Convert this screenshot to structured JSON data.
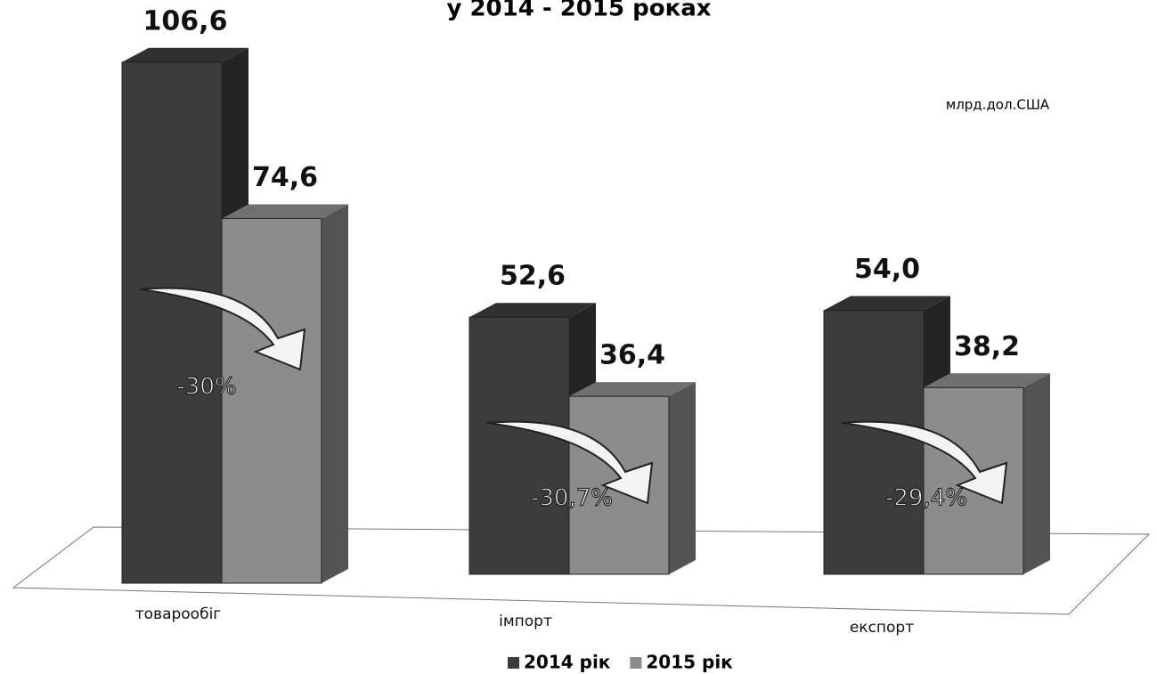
{
  "chart_data": {
    "type": "bar",
    "title": "у 2014 - 2015 роках",
    "unit": "млрд.дол.США",
    "categories": [
      "товарообіг",
      "імпорт",
      "експорт"
    ],
    "series": [
      {
        "name": "2014 рік",
        "color": "#3c3c3c",
        "values": [
          106.6,
          52.6,
          54.0
        ],
        "value_labels": [
          "106,6",
          "52,6",
          "54,0"
        ]
      },
      {
        "name": "2015 рік",
        "color": "#8c8c8c",
        "values": [
          74.6,
          36.4,
          38.2
        ],
        "value_labels": [
          "74,6",
          "36,4",
          "38,2"
        ]
      }
    ],
    "annotations": [
      "-30%",
      "-30,7%",
      "-29,4%"
    ]
  }
}
